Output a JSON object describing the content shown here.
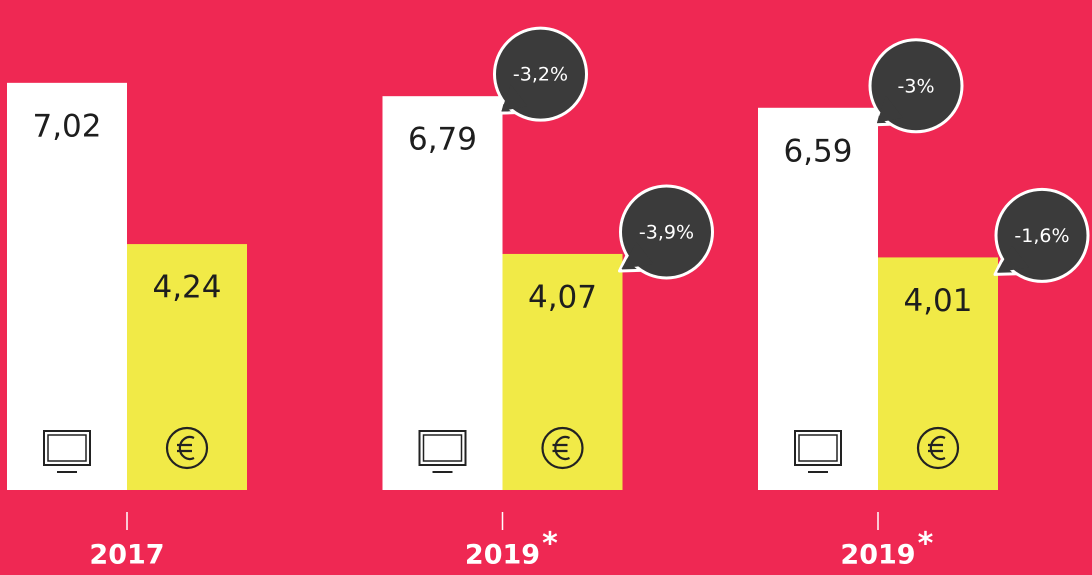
{
  "chart_data": {
    "type": "bar",
    "categories": [
      "2017",
      "2019",
      "2019"
    ],
    "category_marks": [
      null,
      "*",
      "*"
    ],
    "series": [
      {
        "color": "#ffffff",
        "values": [
          7.02,
          6.79,
          6.59
        ],
        "value_labels": [
          "7,02",
          "6,79",
          "6,59"
        ],
        "changes": [
          null,
          -3.2,
          -3
        ],
        "change_labels": [
          null,
          "-3,2%",
          "-3%"
        ]
      },
      {
        "color": "#f1ea47",
        "values": [
          4.24,
          4.07,
          4.01
        ],
        "value_labels": [
          "4,24",
          "4,07",
          "4,01"
        ],
        "changes": [
          null,
          -3.9,
          -1.6
        ],
        "change_labels": [
          null,
          "-3,9%",
          "-1,6%"
        ]
      }
    ]
  }
}
